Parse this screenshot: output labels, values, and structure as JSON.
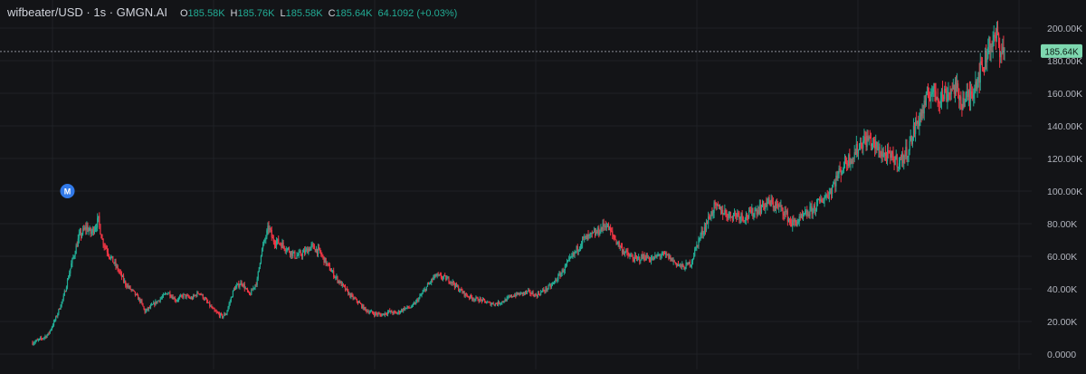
{
  "legend": {
    "symbol": "wifbeater/USD · 1s · GMGN.AI",
    "open_label": "O",
    "open": "185.58K",
    "high_label": "H",
    "high": "185.76K",
    "low_label": "L",
    "low": "185.58K",
    "close_label": "C",
    "close": "185.64K",
    "change": "64.1092 (+0.03%)"
  },
  "colors": {
    "background": "#131417",
    "up": "#22ab94",
    "down": "#f23645",
    "text": "#d1d4dc",
    "marker": "#2962ff"
  },
  "marker": {
    "letter": "M",
    "icon": "migration-marker-icon"
  },
  "chart_data": {
    "type": "candlestick",
    "title": "",
    "xlabel": "",
    "ylabel": "",
    "grid": true,
    "ylim": [
      0,
      205000
    ],
    "y_ticks": [
      "200.00K",
      "180.00K",
      "160.00K",
      "140.00K",
      "120.00K",
      "100.00K",
      "80.00K",
      "60.00K",
      "40.00K",
      "20.00K",
      "0.0000"
    ],
    "y_tick_values": [
      200000,
      180000,
      160000,
      140000,
      120000,
      100000,
      80000,
      60000,
      40000,
      20000,
      0
    ],
    "last_price": 185640,
    "last_price_label": "185.64K",
    "marker_index": 9,
    "close_path": [
      [
        0,
        7000
      ],
      [
        2,
        9000
      ],
      [
        4,
        12000
      ],
      [
        6,
        22000
      ],
      [
        8,
        35000
      ],
      [
        10,
        55000
      ],
      [
        12,
        72000
      ],
      [
        14,
        78000
      ],
      [
        15,
        74000
      ],
      [
        17,
        82000
      ],
      [
        18,
        70000
      ],
      [
        20,
        60000
      ],
      [
        22,
        52000
      ],
      [
        24,
        43000
      ],
      [
        26,
        38000
      ],
      [
        28,
        32000
      ],
      [
        29,
        26000
      ],
      [
        31,
        30000
      ],
      [
        33,
        34000
      ],
      [
        35,
        38000
      ],
      [
        37,
        33000
      ],
      [
        39,
        36000
      ],
      [
        41,
        34000
      ],
      [
        43,
        38000
      ],
      [
        45,
        32000
      ],
      [
        47,
        26000
      ],
      [
        49,
        23000
      ],
      [
        50,
        25000
      ],
      [
        52,
        40000
      ],
      [
        54,
        44000
      ],
      [
        56,
        36000
      ],
      [
        58,
        45000
      ],
      [
        59,
        62000
      ],
      [
        61,
        78000
      ],
      [
        62,
        70000
      ],
      [
        64,
        68000
      ],
      [
        66,
        64000
      ],
      [
        68,
        60000
      ],
      [
        70,
        62000
      ],
      [
        72,
        66000
      ],
      [
        74,
        63000
      ],
      [
        76,
        55000
      ],
      [
        78,
        48000
      ],
      [
        80,
        42000
      ],
      [
        82,
        36000
      ],
      [
        84,
        32000
      ],
      [
        86,
        27000
      ],
      [
        88,
        25000
      ],
      [
        90,
        24000
      ],
      [
        92,
        26000
      ],
      [
        94,
        25000
      ],
      [
        96,
        28000
      ],
      [
        98,
        29000
      ],
      [
        100,
        35000
      ],
      [
        102,
        42000
      ],
      [
        104,
        48000
      ],
      [
        106,
        47000
      ],
      [
        108,
        45000
      ],
      [
        110,
        40000
      ],
      [
        112,
        36000
      ],
      [
        114,
        34000
      ],
      [
        116,
        33000
      ],
      [
        118,
        31000
      ],
      [
        120,
        31000
      ],
      [
        122,
        33000
      ],
      [
        124,
        36000
      ],
      [
        126,
        37000
      ],
      [
        128,
        38000
      ],
      [
        130,
        36000
      ],
      [
        132,
        39000
      ],
      [
        134,
        42000
      ],
      [
        136,
        48000
      ],
      [
        138,
        55000
      ],
      [
        140,
        62000
      ],
      [
        142,
        70000
      ],
      [
        144,
        72000
      ],
      [
        146,
        75000
      ],
      [
        148,
        80000
      ],
      [
        150,
        72000
      ],
      [
        152,
        65000
      ],
      [
        154,
        60000
      ],
      [
        156,
        58000
      ],
      [
        158,
        60000
      ],
      [
        160,
        58000
      ],
      [
        162,
        61000
      ],
      [
        164,
        60000
      ],
      [
        166,
        56000
      ],
      [
        168,
        53000
      ],
      [
        170,
        56000
      ],
      [
        172,
        70000
      ],
      [
        174,
        80000
      ],
      [
        176,
        90000
      ],
      [
        178,
        88000
      ],
      [
        180,
        85000
      ],
      [
        182,
        86000
      ],
      [
        184,
        84000
      ],
      [
        186,
        87000
      ],
      [
        188,
        90000
      ],
      [
        190,
        93000
      ],
      [
        192,
        91000
      ],
      [
        194,
        88000
      ],
      [
        196,
        80000
      ],
      [
        198,
        82000
      ],
      [
        200,
        86000
      ],
      [
        202,
        90000
      ],
      [
        204,
        95000
      ],
      [
        206,
        100000
      ],
      [
        208,
        110000
      ],
      [
        210,
        118000
      ],
      [
        212,
        122000
      ],
      [
        214,
        130000
      ],
      [
        216,
        132000
      ],
      [
        218,
        126000
      ],
      [
        220,
        122000
      ],
      [
        222,
        120000
      ],
      [
        224,
        118000
      ],
      [
        226,
        125000
      ],
      [
        228,
        140000
      ],
      [
        230,
        150000
      ],
      [
        232,
        162000
      ],
      [
        234,
        158000
      ],
      [
        236,
        160000
      ],
      [
        238,
        164000
      ],
      [
        240,
        155000
      ],
      [
        242,
        158000
      ],
      [
        244,
        170000
      ],
      [
        246,
        180000
      ],
      [
        247,
        192000
      ],
      [
        248,
        189000
      ],
      [
        249,
        196000
      ],
      [
        250,
        186000
      ],
      [
        251,
        185640
      ]
    ]
  }
}
